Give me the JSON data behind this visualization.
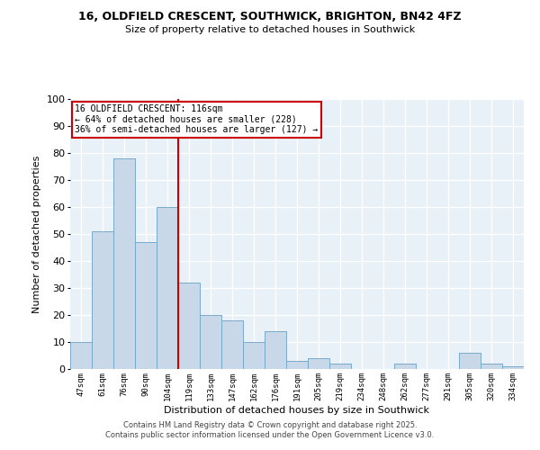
{
  "title": "16, OLDFIELD CRESCENT, SOUTHWICK, BRIGHTON, BN42 4FZ",
  "subtitle": "Size of property relative to detached houses in Southwick",
  "xlabel": "Distribution of detached houses by size in Southwick",
  "ylabel": "Number of detached properties",
  "bar_labels": [
    "47sqm",
    "61sqm",
    "76sqm",
    "90sqm",
    "104sqm",
    "119sqm",
    "133sqm",
    "147sqm",
    "162sqm",
    "176sqm",
    "191sqm",
    "205sqm",
    "219sqm",
    "234sqm",
    "248sqm",
    "262sqm",
    "277sqm",
    "291sqm",
    "305sqm",
    "320sqm",
    "334sqm"
  ],
  "bar_values": [
    10,
    51,
    78,
    47,
    60,
    32,
    20,
    18,
    10,
    14,
    3,
    4,
    2,
    0,
    0,
    2,
    0,
    0,
    6,
    2,
    1
  ],
  "bar_color": "#c8d8e8",
  "bar_edgecolor": "#7aaac8",
  "vline_index": 5,
  "vline_color": "#cc0000",
  "annotation_line1": "16 OLDFIELD CRESCENT: 116sqm",
  "annotation_line2": "← 64% of detached houses are smaller (228)",
  "annotation_line3": "36% of semi-detached houses are larger (127) →",
  "annotation_box_color": "white",
  "annotation_box_edgecolor": "#cc0000",
  "ylim": [
    0,
    100
  ],
  "yticks": [
    0,
    10,
    20,
    30,
    40,
    50,
    60,
    70,
    80,
    90,
    100
  ],
  "bg_color": "#e8f0f8",
  "grid_color": "white",
  "footer1": "Contains HM Land Registry data © Crown copyright and database right 2025.",
  "footer2": "Contains public sector information licensed under the Open Government Licence v3.0."
}
